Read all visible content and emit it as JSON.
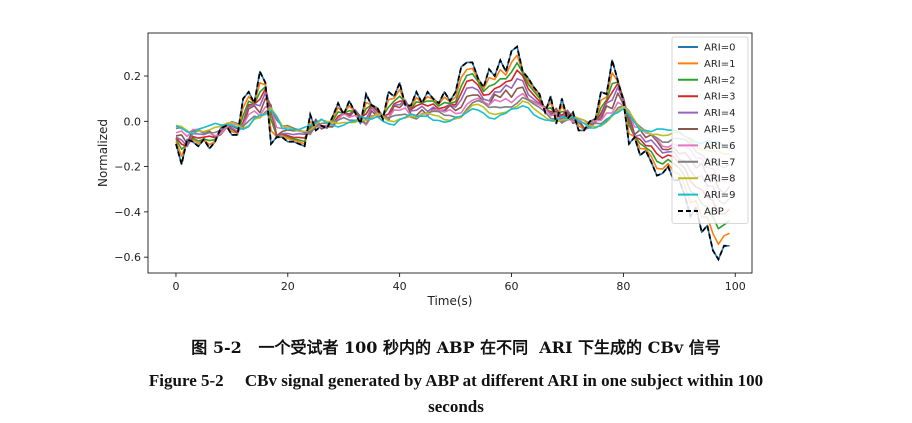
{
  "chart_data": {
    "type": "line",
    "xlabel": "Time(s)",
    "ylabel": "Normalized",
    "xlim": [
      -5,
      103
    ],
    "ylim": [
      -0.67,
      0.39
    ],
    "xticks": [
      0,
      20,
      40,
      60,
      80,
      100
    ],
    "yticks": [
      -0.6,
      -0.4,
      -0.2,
      0.0,
      0.2
    ],
    "xtick_labels": [
      "0",
      "20",
      "40",
      "60",
      "80",
      "100"
    ],
    "ytick_labels": [
      "−0.6",
      "−0.4",
      "−0.2",
      "0.0",
      "0.2"
    ],
    "grid": false,
    "legend_position": "top-right",
    "x": [
      0,
      1,
      2,
      3,
      4,
      5,
      6,
      7,
      8,
      9,
      10,
      11,
      12,
      13,
      14,
      15,
      16,
      17,
      18,
      19,
      20,
      21,
      22,
      23,
      24,
      25,
      26,
      27,
      28,
      29,
      30,
      31,
      32,
      33,
      34,
      35,
      36,
      37,
      38,
      39,
      40,
      41,
      42,
      43,
      44,
      45,
      46,
      47,
      48,
      49,
      50,
      51,
      52,
      53,
      54,
      55,
      56,
      57,
      58,
      59,
      60,
      61,
      62,
      63,
      64,
      65,
      66,
      67,
      68,
      69,
      70,
      71,
      72,
      73,
      74,
      75,
      76,
      77,
      78,
      79,
      80,
      81,
      82,
      83,
      84,
      85,
      86,
      87,
      88,
      89,
      90,
      91,
      92,
      93,
      94,
      95,
      96,
      97,
      98,
      99
    ],
    "abp": [
      -0.1,
      -0.19,
      -0.08,
      -0.09,
      -0.11,
      -0.08,
      -0.12,
      -0.09,
      -0.03,
      -0.02,
      -0.06,
      -0.06,
      0.1,
      0.13,
      0.08,
      0.22,
      0.17,
      -0.1,
      -0.07,
      -0.07,
      -0.09,
      -0.09,
      -0.1,
      -0.11,
      0.03,
      -0.04,
      -0.02,
      -0.03,
      0.02,
      0.08,
      0.03,
      0.09,
      0.04,
      -0.01,
      0.12,
      0.07,
      0.06,
      0.01,
      0.13,
      0.11,
      0.17,
      0.07,
      0.07,
      0.13,
      0.08,
      0.13,
      0.1,
      0.08,
      0.13,
      0.09,
      0.13,
      0.24,
      0.26,
      0.26,
      0.19,
      0.15,
      0.23,
      0.2,
      0.27,
      0.22,
      0.31,
      0.33,
      0.22,
      0.19,
      0.15,
      0.12,
      0.04,
      0.11,
      -0.01,
      0.1,
      0.01,
      0.04,
      -0.04,
      -0.04,
      0.0,
      0.01,
      0.13,
      0.12,
      0.27,
      0.18,
      0.09,
      -0.1,
      -0.07,
      -0.15,
      -0.13,
      -0.18,
      -0.24,
      -0.23,
      -0.2,
      -0.26,
      -0.26,
      -0.33,
      -0.42,
      -0.38,
      -0.49,
      -0.46,
      -0.57,
      -0.61,
      -0.55,
      -0.55
    ],
    "series": [
      {
        "name": "ARI=0",
        "color": "#1f77b4",
        "amp": 1.0,
        "lag": 0.0,
        "zorder": 0
      },
      {
        "name": "ARI=1",
        "color": "#ff7f0e",
        "amp": 0.9,
        "lag": 0.2,
        "zorder": 1
      },
      {
        "name": "ARI=2",
        "color": "#2ca02c",
        "amp": 0.8,
        "lag": 0.4,
        "zorder": 2
      },
      {
        "name": "ARI=3",
        "color": "#d62728",
        "amp": 0.7,
        "lag": 0.6,
        "zorder": 3
      },
      {
        "name": "ARI=4",
        "color": "#9467bd",
        "amp": 0.6,
        "lag": 0.8,
        "zorder": 4
      },
      {
        "name": "ARI=5",
        "color": "#8c564b",
        "amp": 0.5,
        "lag": 1.0,
        "zorder": 5
      },
      {
        "name": "ARI=6",
        "color": "#e377c2",
        "amp": 0.42,
        "lag": 1.2,
        "zorder": 6
      },
      {
        "name": "ARI=7",
        "color": "#7f7f7f",
        "amp": 0.34,
        "lag": 1.4,
        "zorder": 7
      },
      {
        "name": "ARI=8",
        "color": "#bcbd22",
        "amp": 0.26,
        "lag": 1.6,
        "zorder": 8
      },
      {
        "name": "ARI=9",
        "color": "#17becf",
        "amp": 0.2,
        "lag": 1.8,
        "zorder": 9
      }
    ],
    "abp_series": {
      "name": "ABP",
      "color": "#000000",
      "style": "dashed"
    }
  },
  "captions": {
    "chinese": "图 5-2   一个受试者 100 秒内的 ABP 在不同  ARI 下生成的 CBv 信号",
    "english_line1": "Figure 5-2     CBv signal generated by ABP at different ARI in one subject within 100",
    "english_line2": "seconds"
  }
}
